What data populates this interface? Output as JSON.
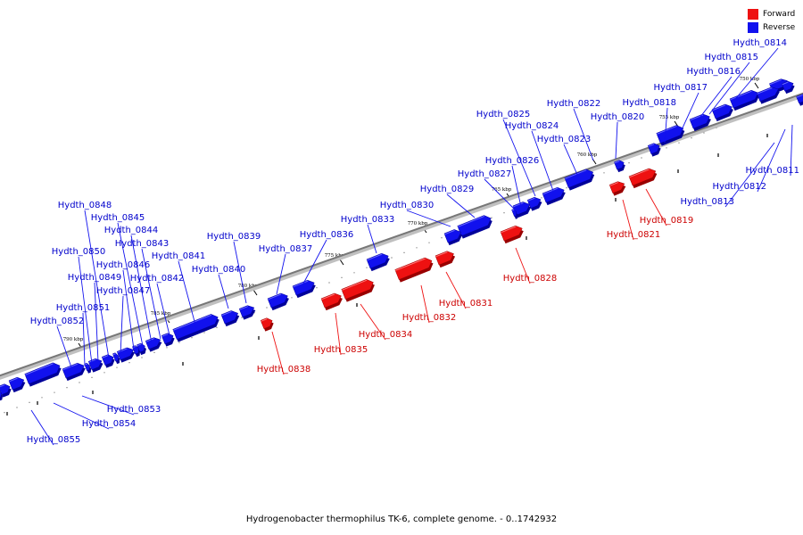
{
  "legend": {
    "forward_label": "Forward",
    "reverse_label": "Reverse"
  },
  "colors": {
    "forward": "#ee1111",
    "reverse": "#1111ee",
    "backbone": "#888888"
  },
  "caption": "Hydrogenobacter thermophilus TK-6, complete genome. - 0..1742932",
  "kbp_labels": [
    "750 kbp",
    "755 kbp",
    "760 kbp",
    "765 kbp",
    "770 kbp",
    "775 kbp",
    "780 kbp",
    "785 kbp",
    "790 kbp"
  ],
  "genes": [
    {
      "name": "Hydth_0811",
      "strand": "reverse"
    },
    {
      "name": "Hydth_0812",
      "strand": "reverse"
    },
    {
      "name": "Hydth_0813",
      "strand": "reverse"
    },
    {
      "name": "Hydth_0814",
      "strand": "reverse"
    },
    {
      "name": "Hydth_0815",
      "strand": "reverse"
    },
    {
      "name": "Hydth_0816",
      "strand": "reverse"
    },
    {
      "name": "Hydth_0817",
      "strand": "reverse"
    },
    {
      "name": "Hydth_0818",
      "strand": "reverse"
    },
    {
      "name": "Hydth_0819",
      "strand": "forward"
    },
    {
      "name": "Hydth_0820",
      "strand": "reverse"
    },
    {
      "name": "Hydth_0821",
      "strand": "forward"
    },
    {
      "name": "Hydth_0822",
      "strand": "reverse"
    },
    {
      "name": "Hydth_0823",
      "strand": "reverse"
    },
    {
      "name": "Hydth_0824",
      "strand": "reverse"
    },
    {
      "name": "Hydth_0825",
      "strand": "reverse"
    },
    {
      "name": "Hydth_0826",
      "strand": "reverse"
    },
    {
      "name": "Hydth_0827",
      "strand": "reverse"
    },
    {
      "name": "Hydth_0828",
      "strand": "forward"
    },
    {
      "name": "Hydth_0829",
      "strand": "reverse"
    },
    {
      "name": "Hydth_0830",
      "strand": "reverse"
    },
    {
      "name": "Hydth_0831",
      "strand": "forward"
    },
    {
      "name": "Hydth_0832",
      "strand": "forward"
    },
    {
      "name": "Hydth_0833",
      "strand": "reverse"
    },
    {
      "name": "Hydth_0834",
      "strand": "forward"
    },
    {
      "name": "Hydth_0835",
      "strand": "forward"
    },
    {
      "name": "Hydth_0836",
      "strand": "reverse"
    },
    {
      "name": "Hydth_0837",
      "strand": "reverse"
    },
    {
      "name": "Hydth_0838",
      "strand": "forward"
    },
    {
      "name": "Hydth_0839",
      "strand": "reverse"
    },
    {
      "name": "Hydth_0840",
      "strand": "reverse"
    },
    {
      "name": "Hydth_0841",
      "strand": "reverse"
    },
    {
      "name": "Hydth_0842",
      "strand": "reverse"
    },
    {
      "name": "Hydth_0843",
      "strand": "reverse"
    },
    {
      "name": "Hydth_0844",
      "strand": "reverse"
    },
    {
      "name": "Hydth_0845",
      "strand": "reverse"
    },
    {
      "name": "Hydth_0846",
      "strand": "reverse"
    },
    {
      "name": "Hydth_0847",
      "strand": "reverse"
    },
    {
      "name": "Hydth_0848",
      "strand": "reverse"
    },
    {
      "name": "Hydth_0849",
      "strand": "reverse"
    },
    {
      "name": "Hydth_0850",
      "strand": "reverse"
    },
    {
      "name": "Hydth_0851",
      "strand": "reverse"
    },
    {
      "name": "Hydth_0852",
      "strand": "reverse"
    },
    {
      "name": "Hydth_0853",
      "strand": "reverse"
    },
    {
      "name": "Hydth_0854",
      "strand": "reverse"
    },
    {
      "name": "Hydth_0855",
      "strand": "reverse"
    }
  ]
}
